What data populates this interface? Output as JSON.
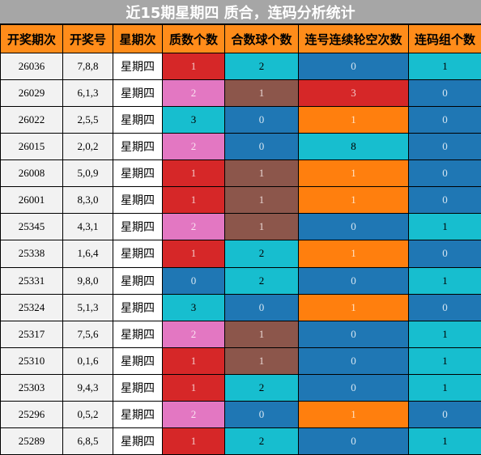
{
  "title": "近15期星期四 质合，连码分析统计",
  "headers": [
    "开奖期次",
    "开奖号",
    "星期次",
    "质数个数",
    "合数球个数",
    "连号连续轮空次数",
    "连码组个数"
  ],
  "colors": {
    "red": "#d62728",
    "pink": "#e377c2",
    "cyan": "#17becf",
    "blue": "#1f77b4",
    "brown": "#8c564b",
    "orange": "#ff7f0e",
    "header": "#ff8c1a",
    "title_bar": "#a6a6a6"
  },
  "rows": [
    {
      "issue": "26036",
      "numbers": "7,8,8",
      "weekday": "星期四",
      "primes": {
        "v": "1",
        "c": "red"
      },
      "composites": {
        "v": "2",
        "c": "cyan"
      },
      "streak": {
        "v": "0",
        "c": "blue"
      },
      "groups": {
        "v": "1",
        "c": "cyan"
      }
    },
    {
      "issue": "26029",
      "numbers": "6,1,3",
      "weekday": "星期四",
      "primes": {
        "v": "2",
        "c": "pink"
      },
      "composites": {
        "v": "1",
        "c": "brown"
      },
      "streak": {
        "v": "3",
        "c": "red"
      },
      "groups": {
        "v": "0",
        "c": "blue"
      }
    },
    {
      "issue": "26022",
      "numbers": "2,5,5",
      "weekday": "星期四",
      "primes": {
        "v": "3",
        "c": "cyan"
      },
      "composites": {
        "v": "0",
        "c": "blue"
      },
      "streak": {
        "v": "1",
        "c": "orange"
      },
      "groups": {
        "v": "0",
        "c": "blue"
      }
    },
    {
      "issue": "26015",
      "numbers": "2,0,2",
      "weekday": "星期四",
      "primes": {
        "v": "2",
        "c": "pink"
      },
      "composites": {
        "v": "0",
        "c": "blue"
      },
      "streak": {
        "v": "8",
        "c": "cyan"
      },
      "groups": {
        "v": "0",
        "c": "blue"
      }
    },
    {
      "issue": "26008",
      "numbers": "5,0,9",
      "weekday": "星期四",
      "primes": {
        "v": "1",
        "c": "red"
      },
      "composites": {
        "v": "1",
        "c": "brown"
      },
      "streak": {
        "v": "1",
        "c": "orange"
      },
      "groups": {
        "v": "0",
        "c": "blue"
      }
    },
    {
      "issue": "26001",
      "numbers": "8,3,0",
      "weekday": "星期四",
      "primes": {
        "v": "1",
        "c": "red"
      },
      "composites": {
        "v": "1",
        "c": "brown"
      },
      "streak": {
        "v": "1",
        "c": "orange"
      },
      "groups": {
        "v": "0",
        "c": "blue"
      }
    },
    {
      "issue": "25345",
      "numbers": "4,3,1",
      "weekday": "星期四",
      "primes": {
        "v": "2",
        "c": "pink"
      },
      "composites": {
        "v": "1",
        "c": "brown"
      },
      "streak": {
        "v": "0",
        "c": "blue"
      },
      "groups": {
        "v": "1",
        "c": "cyan"
      }
    },
    {
      "issue": "25338",
      "numbers": "1,6,4",
      "weekday": "星期四",
      "primes": {
        "v": "1",
        "c": "red"
      },
      "composites": {
        "v": "2",
        "c": "cyan"
      },
      "streak": {
        "v": "1",
        "c": "orange"
      },
      "groups": {
        "v": "0",
        "c": "blue"
      }
    },
    {
      "issue": "25331",
      "numbers": "9,8,0",
      "weekday": "星期四",
      "primes": {
        "v": "0",
        "c": "blue"
      },
      "composites": {
        "v": "2",
        "c": "cyan"
      },
      "streak": {
        "v": "0",
        "c": "blue"
      },
      "groups": {
        "v": "1",
        "c": "cyan"
      }
    },
    {
      "issue": "25324",
      "numbers": "5,1,3",
      "weekday": "星期四",
      "primes": {
        "v": "3",
        "c": "cyan"
      },
      "composites": {
        "v": "0",
        "c": "blue"
      },
      "streak": {
        "v": "1",
        "c": "orange"
      },
      "groups": {
        "v": "0",
        "c": "blue"
      }
    },
    {
      "issue": "25317",
      "numbers": "7,5,6",
      "weekday": "星期四",
      "primes": {
        "v": "2",
        "c": "pink"
      },
      "composites": {
        "v": "1",
        "c": "brown"
      },
      "streak": {
        "v": "0",
        "c": "blue"
      },
      "groups": {
        "v": "1",
        "c": "cyan"
      }
    },
    {
      "issue": "25310",
      "numbers": "0,1,6",
      "weekday": "星期四",
      "primes": {
        "v": "1",
        "c": "red"
      },
      "composites": {
        "v": "1",
        "c": "brown"
      },
      "streak": {
        "v": "0",
        "c": "blue"
      },
      "groups": {
        "v": "1",
        "c": "cyan"
      }
    },
    {
      "issue": "25303",
      "numbers": "9,4,3",
      "weekday": "星期四",
      "primes": {
        "v": "1",
        "c": "red"
      },
      "composites": {
        "v": "2",
        "c": "cyan"
      },
      "streak": {
        "v": "0",
        "c": "blue"
      },
      "groups": {
        "v": "1",
        "c": "cyan"
      }
    },
    {
      "issue": "25296",
      "numbers": "0,5,2",
      "weekday": "星期四",
      "primes": {
        "v": "2",
        "c": "pink"
      },
      "composites": {
        "v": "0",
        "c": "blue"
      },
      "streak": {
        "v": "1",
        "c": "orange"
      },
      "groups": {
        "v": "0",
        "c": "blue"
      }
    },
    {
      "issue": "25289",
      "numbers": "6,8,5",
      "weekday": "星期四",
      "primes": {
        "v": "1",
        "c": "red"
      },
      "composites": {
        "v": "2",
        "c": "cyan"
      },
      "streak": {
        "v": "0",
        "c": "blue"
      },
      "groups": {
        "v": "1",
        "c": "cyan"
      }
    }
  ]
}
